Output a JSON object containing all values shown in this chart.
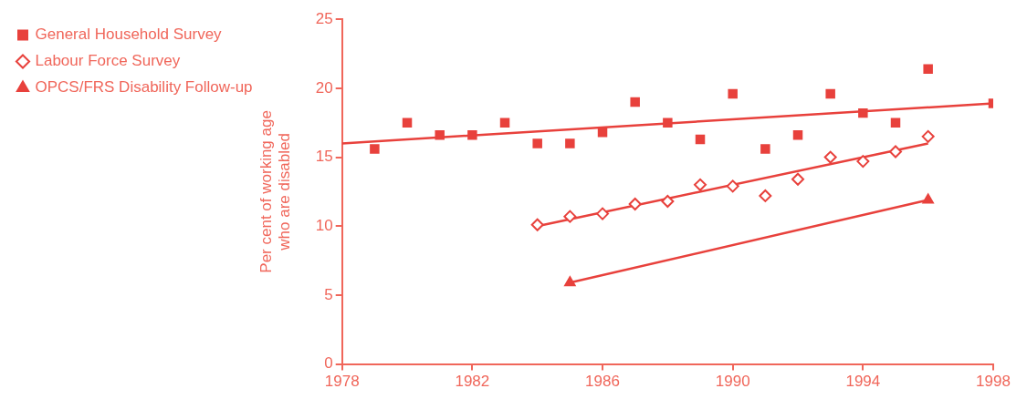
{
  "chart_data": {
    "type": "scatter",
    "ylabel": "Per cent of working age\nwho are disabled",
    "xlim": [
      1978,
      1998
    ],
    "xticks": [
      1978,
      1982,
      1986,
      1990,
      1994,
      1998
    ],
    "ylim": [
      0,
      25
    ],
    "yticks": [
      0,
      5,
      10,
      15,
      20,
      25
    ],
    "grid": false,
    "legend": "left",
    "series": [
      {
        "name": "General Household Survey",
        "color": "#e8413c",
        "marker": "square",
        "x": [
          1979,
          1980,
          1981,
          1982,
          1983,
          1984,
          1985,
          1986,
          1987,
          1988,
          1989,
          1990,
          1991,
          1992,
          1993,
          1994,
          1995,
          1996,
          1998
        ],
        "values": [
          15.6,
          17.5,
          16.6,
          16.6,
          17.5,
          16.0,
          16.0,
          16.8,
          19.0,
          17.5,
          16.3,
          19.6,
          15.6,
          16.6,
          19.6,
          18.2,
          17.5,
          21.4,
          18.9
        ]
      },
      {
        "name": "Labour Force Survey",
        "color": "#e8413c",
        "marker": "diamond",
        "x": [
          1984,
          1985,
          1986,
          1987,
          1988,
          1989,
          1990,
          1991,
          1992,
          1993,
          1994,
          1995,
          1996
        ],
        "values": [
          10.1,
          10.7,
          10.9,
          11.6,
          11.8,
          13.0,
          12.9,
          12.2,
          13.4,
          15.0,
          14.7,
          15.4,
          16.5
        ]
      },
      {
        "name": "OPCS/FRS Disability Follow-up",
        "type": "line",
        "color": "#e8413c",
        "marker": "triangle",
        "x": [
          1985,
          1996
        ],
        "values": [
          5.9,
          11.9
        ]
      },
      {
        "type": "line",
        "color": "#e8413c",
        "marker": "none",
        "x": [
          1978,
          1998
        ],
        "values": [
          16.0,
          18.9
        ]
      },
      {
        "type": "line",
        "color": "#e8413c",
        "marker": "none",
        "x": [
          1984,
          1996
        ],
        "values": [
          10.0,
          16.0
        ]
      }
    ]
  }
}
